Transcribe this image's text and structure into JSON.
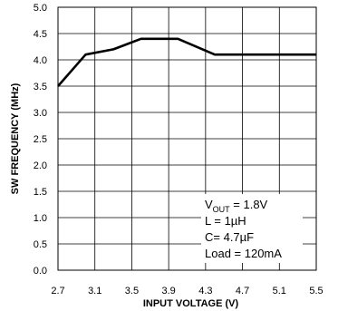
{
  "chart_data": {
    "type": "line",
    "title": "",
    "xlabel": "INPUT VOLTAGE (V)",
    "ylabel": "SW FREQUENCY (MHz)",
    "xlim": [
      2.7,
      5.5
    ],
    "ylim": [
      0.0,
      5.0
    ],
    "x_ticks": [
      "2.7",
      "3.1",
      "3.5",
      "3.9",
      "4.3",
      "4.7",
      "5.1",
      "5.5"
    ],
    "y_ticks": [
      "0.0",
      "0.5",
      "1.0",
      "1.5",
      "2.0",
      "2.5",
      "3.0",
      "3.5",
      "4.0",
      "4.5",
      "5.0"
    ],
    "grid": "on",
    "series": [
      {
        "x": [
          2.7,
          3.0,
          3.3,
          3.6,
          4.0,
          4.4,
          4.7,
          5.5
        ],
        "values": [
          3.5,
          4.1,
          4.2,
          4.4,
          4.4,
          4.1,
          4.1,
          4.1
        ]
      }
    ],
    "annotations": {
      "vout_main": "V",
      "vout_sub": "OUT",
      "vout_value": " = 1.8V",
      "inductance": "L = 1µH",
      "capacitance": "C= 4.7µF",
      "load": "Load = 120mA"
    }
  }
}
